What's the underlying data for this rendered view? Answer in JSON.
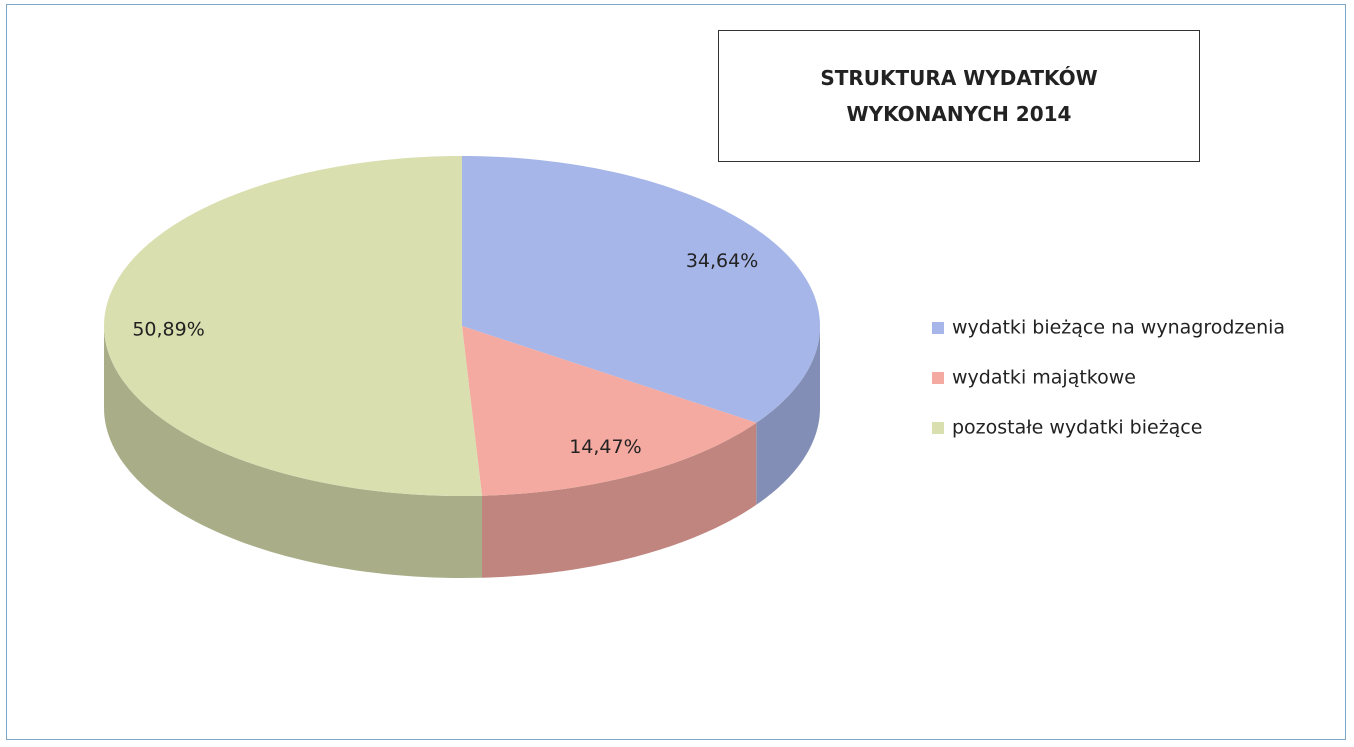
{
  "chart_data": {
    "type": "pie",
    "title": "STRUKTURA WYDATKÓW WYKONANYCH 2014",
    "labels": [
      "wydatki bieżące na wynagrodzenia",
      "wydatki majątkowe",
      "pozostałe wydatki bieżące"
    ],
    "values": [
      34.64,
      14.47,
      50.89
    ],
    "value_labels": [
      "34,64%",
      "14,47%",
      "50,89%"
    ],
    "colors": [
      "#a7b6e8",
      "#f5aaa1",
      "#d9dfaf"
    ],
    "legend": "right"
  }
}
